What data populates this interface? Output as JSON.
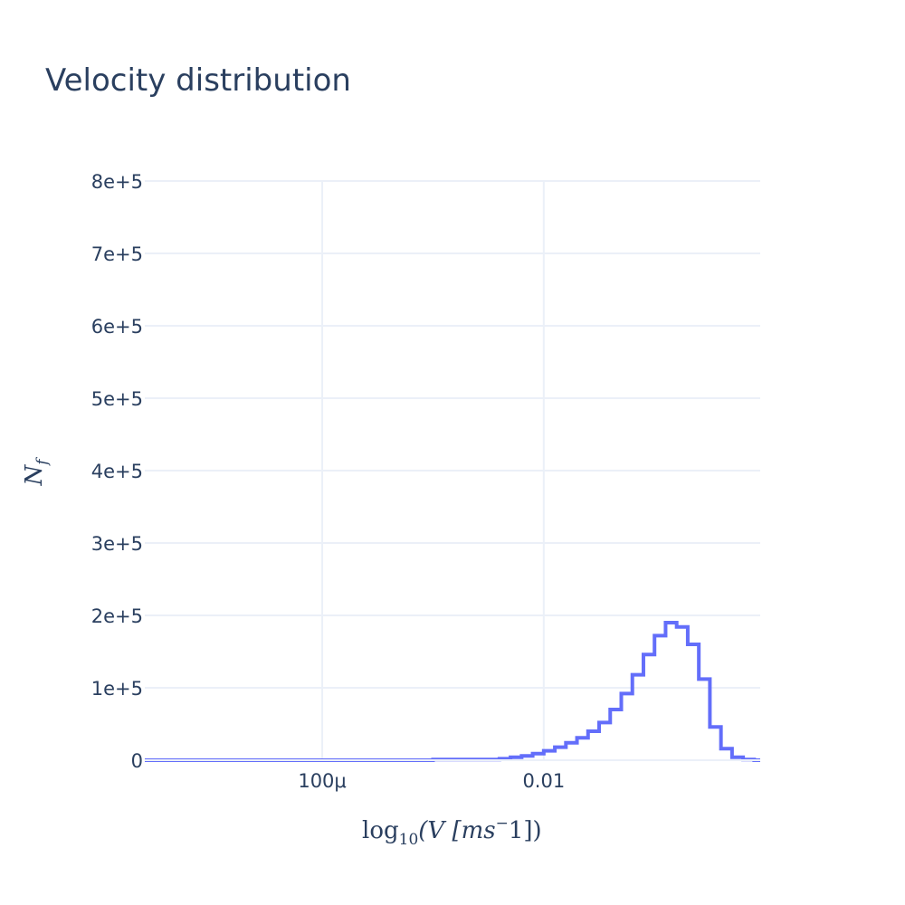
{
  "chart_data": {
    "type": "histogram",
    "title": "Velocity distribution",
    "xlabel": {
      "func": "log",
      "func_sub": "10",
      "open": "(V [",
      "unit": "ms",
      "unit_sup": "−",
      "tail": "1])"
    },
    "ylabel": {
      "main": "N",
      "sub": "f"
    },
    "x_scale": "log",
    "xlim": [
      2.5e-06,
      0.9
    ],
    "ylim": [
      0,
      800000
    ],
    "x_ticks": [
      {
        "value": 0.0001,
        "label": "100μ"
      },
      {
        "value": 0.01,
        "label": "0.01"
      }
    ],
    "y_ticks": [
      {
        "value": 0,
        "label": "0"
      },
      {
        "value": 100000,
        "label": "1e+5"
      },
      {
        "value": 200000,
        "label": "2e+5"
      },
      {
        "value": 300000,
        "label": "3e+5"
      },
      {
        "value": 400000,
        "label": "4e+5"
      },
      {
        "value": 500000,
        "label": "5e+5"
      },
      {
        "value": 600000,
        "label": "6e+5"
      },
      {
        "value": 700000,
        "label": "7e+5"
      },
      {
        "value": 800000,
        "label": "8e+5"
      }
    ],
    "grid": true,
    "line_color": "#636efa",
    "bin_edges_log10": [
      -5.6,
      -3.0,
      -2.4,
      -2.3,
      -2.2,
      -2.1,
      -2.0,
      -1.9,
      -1.8,
      -1.7,
      -1.6,
      -1.5,
      -1.4,
      -1.3,
      -1.2,
      -1.1,
      -1.0,
      -0.9,
      -0.8,
      -0.7,
      -0.6,
      -0.5,
      -0.4,
      -0.3,
      -0.2,
      -0.1,
      -0.05
    ],
    "counts": [
      0,
      1000,
      2000,
      4000,
      6000,
      9000,
      13000,
      18000,
      24000,
      31000,
      40000,
      52000,
      70000,
      92000,
      118000,
      146000,
      172000,
      190000,
      184000,
      160000,
      112000,
      46000,
      16000,
      4000,
      1000,
      0
    ]
  }
}
